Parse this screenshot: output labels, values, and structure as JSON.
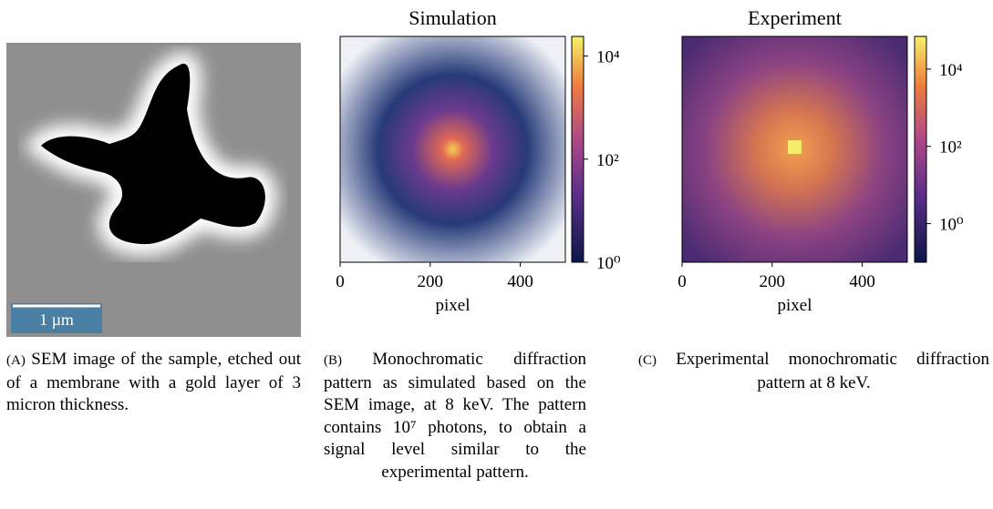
{
  "panels": [
    {
      "scale_bar": "1 µm",
      "caption_label": "(A)",
      "caption_text": "SEM image of the sample, etched out of a membrane with a gold layer of 3 micron thickness."
    },
    {
      "title": "Simulation",
      "xlabel": "pixel",
      "xlim": [
        0,
        500
      ],
      "xticks": [
        0,
        200,
        400
      ],
      "clim": [
        1,
        24000
      ],
      "cticks": [
        {
          "value": 1,
          "label": "10⁰"
        },
        {
          "value": 100,
          "label": "10²"
        },
        {
          "value": 10000,
          "label": "10⁴"
        }
      ],
      "caption_label": "(B)",
      "caption_text": "Monochromatic diffraction pattern as simulated based on the SEM image, at 8 keV. The pattern contains 10⁷ photons, to obtain a signal level similar to the experimental pattern."
    },
    {
      "title": "Experiment",
      "xlabel": "pixel",
      "xlim": [
        0,
        500
      ],
      "xticks": [
        0,
        200,
        400
      ],
      "clim": [
        0.1,
        70000
      ],
      "cticks": [
        {
          "value": 1,
          "label": "10⁰"
        },
        {
          "value": 100,
          "label": "10²"
        },
        {
          "value": 10000,
          "label": "10⁴"
        }
      ],
      "caption_label": "(C)",
      "caption_text": "Experimental monochromatic diffraction pattern at 8 keV."
    }
  ]
}
